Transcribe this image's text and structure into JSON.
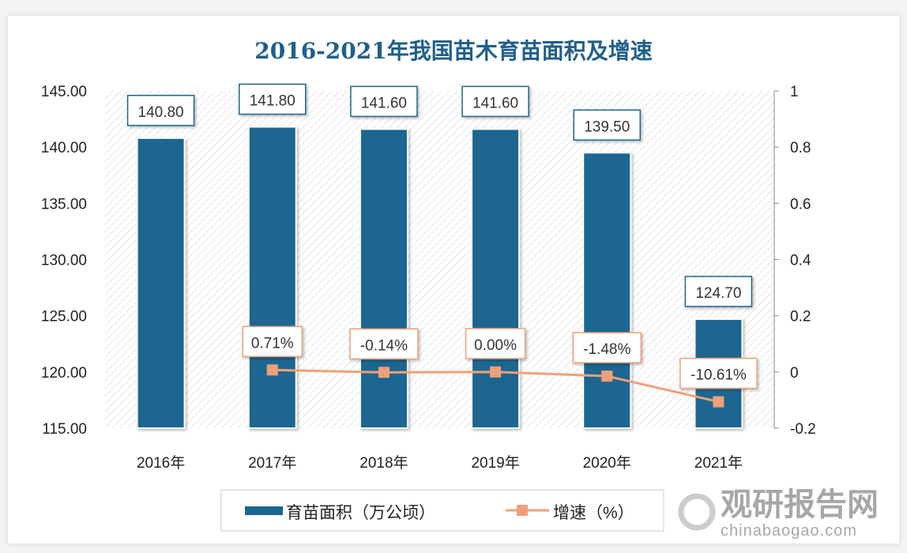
{
  "chart_data": {
    "type": "bar+line",
    "title": "2016-2021年我国苗木育苗面积及增速",
    "categories": [
      "2016年",
      "2017年",
      "2018年",
      "2019年",
      "2020年",
      "2021年"
    ],
    "series": [
      {
        "name": "育苗面积（万公顷）",
        "type": "bar",
        "axis": "left",
        "values": [
          140.8,
          141.8,
          141.6,
          141.6,
          139.5,
          124.7
        ],
        "labels": [
          "140.80",
          "141.80",
          "141.60",
          "141.60",
          "139.50",
          "124.70"
        ],
        "color": "#1a6691"
      },
      {
        "name": "增速（%）",
        "type": "line",
        "axis": "right",
        "values": [
          null,
          0.0071,
          -0.0014,
          0.0,
          -0.0148,
          -0.1061
        ],
        "labels": [
          "",
          "0.71%",
          "-0.14%",
          "0.00%",
          "-1.48%",
          "-10.61%"
        ],
        "color": "#f0a078"
      }
    ],
    "left_axis": {
      "ylim": [
        115,
        145
      ],
      "ticks": [
        "115.00",
        "120.00",
        "125.00",
        "130.00",
        "135.00",
        "140.00",
        "145.00"
      ]
    },
    "right_axis": {
      "ylim": [
        -0.2,
        1
      ],
      "ticks": [
        "-0.2",
        "0",
        "0.2",
        "0.4",
        "0.6",
        "0.8",
        "1"
      ]
    },
    "grid": false,
    "legend_placement": "bottom",
    "background": "diagonal hatch"
  },
  "watermark": {
    "cn": "观研报告网",
    "en": "chinabaogao.com"
  }
}
